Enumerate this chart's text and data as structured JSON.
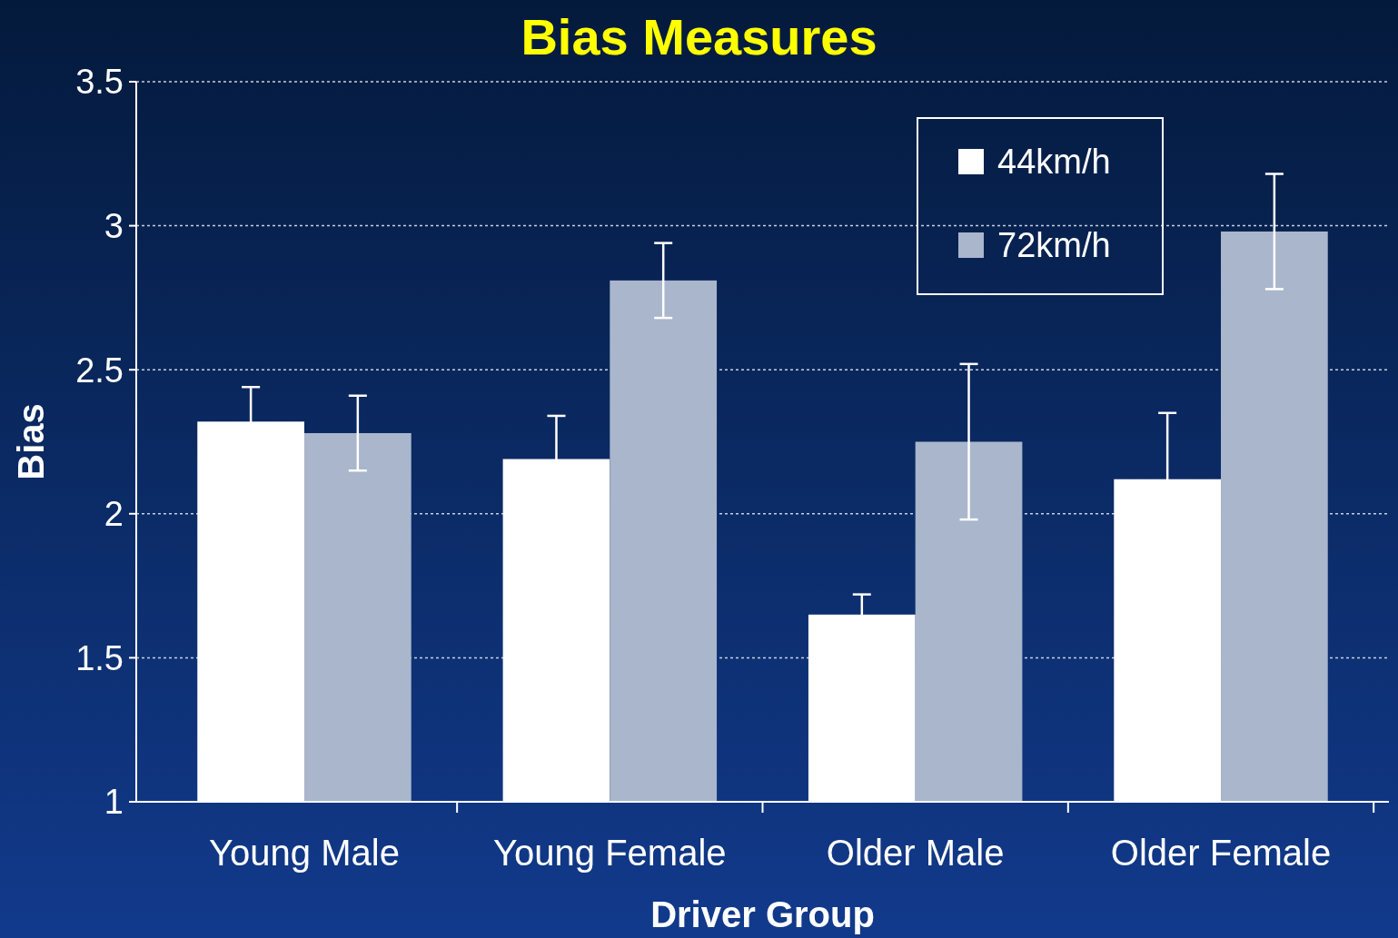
{
  "chart_data": {
    "type": "bar",
    "title": "Bias Measures",
    "xlabel": "Driver Group",
    "ylabel": "Bias",
    "categories": [
      "Young Male",
      "Young Female",
      "Older Male",
      "Older Female"
    ],
    "series": [
      {
        "name": "44km/h",
        "color": "#ffffff",
        "values": [
          2.32,
          2.19,
          1.65,
          2.12
        ],
        "errors": [
          0.12,
          0.15,
          0.07,
          0.23
        ]
      },
      {
        "name": "72km/h",
        "color": "#a9b6cc",
        "values": [
          2.28,
          2.81,
          2.25,
          2.98
        ],
        "errors": [
          0.13,
          0.13,
          0.27,
          0.2
        ]
      }
    ],
    "ylim": [
      1,
      3.5
    ],
    "yticks": [
      1,
      1.5,
      2,
      2.5,
      3,
      3.5
    ],
    "grid": "y",
    "legend": "top right"
  }
}
